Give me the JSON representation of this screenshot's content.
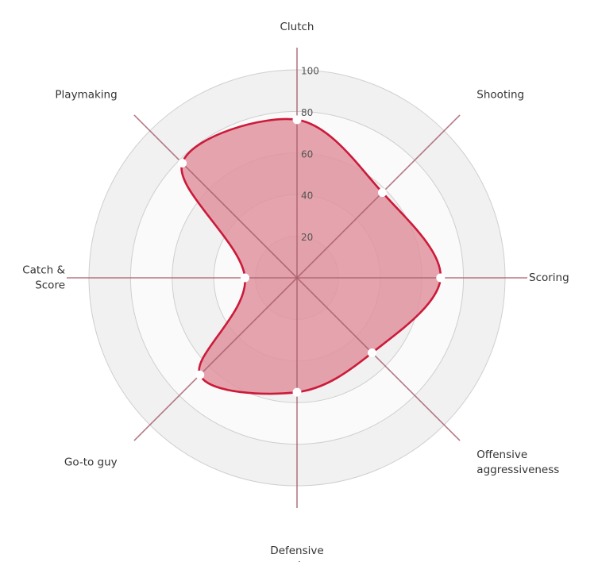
{
  "chart_data": {
    "type": "radar",
    "axes": [
      {
        "label": [
          "Clutch"
        ],
        "value": 76
      },
      {
        "label": [
          "Shooting"
        ],
        "value": 58
      },
      {
        "label": [
          "Scoring"
        ],
        "value": 69
      },
      {
        "label": [
          "Offensive",
          "aggressiveness"
        ],
        "value": 51
      },
      {
        "label": [
          "Defensive",
          "aggressiveness"
        ],
        "value": 55
      },
      {
        "label": [
          "Go-to guy"
        ],
        "value": 66
      },
      {
        "label": [
          "Catch &",
          "Score"
        ],
        "value": 25
      },
      {
        "label": [
          "Playmaking"
        ],
        "value": 78
      }
    ],
    "ticks": [
      "20",
      "40",
      "60",
      "80",
      "100"
    ],
    "rmax": 100,
    "grid": true,
    "colors": {
      "fill": "#e0939f",
      "line": "#cc1a3a",
      "spoke": "#a8606f",
      "ring": "#cfcfcf",
      "band_dark": "#f1f1f1",
      "band_light": "#fafafa",
      "marker": "#ffffff"
    }
  }
}
